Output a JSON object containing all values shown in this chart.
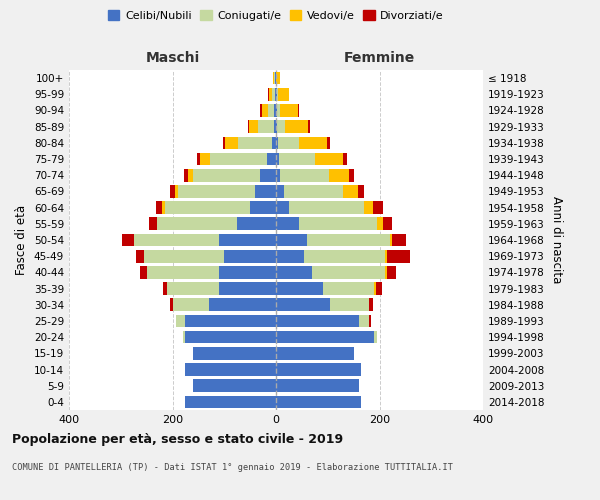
{
  "age_groups": [
    "0-4",
    "5-9",
    "10-14",
    "15-19",
    "20-24",
    "25-29",
    "30-34",
    "35-39",
    "40-44",
    "45-49",
    "50-54",
    "55-59",
    "60-64",
    "65-69",
    "70-74",
    "75-79",
    "80-84",
    "85-89",
    "90-94",
    "95-99",
    "100+"
  ],
  "birth_years": [
    "2014-2018",
    "2009-2013",
    "2004-2008",
    "1999-2003",
    "1994-1998",
    "1989-1993",
    "1984-1988",
    "1979-1983",
    "1974-1978",
    "1969-1973",
    "1964-1968",
    "1959-1963",
    "1954-1958",
    "1949-1953",
    "1944-1948",
    "1939-1943",
    "1934-1938",
    "1929-1933",
    "1924-1928",
    "1919-1923",
    "≤ 1918"
  ],
  "maschi_celibi": [
    175,
    160,
    175,
    160,
    175,
    175,
    130,
    110,
    110,
    100,
    110,
    75,
    50,
    40,
    30,
    18,
    8,
    4,
    4,
    2,
    1
  ],
  "maschi_coniugati": [
    0,
    0,
    0,
    0,
    5,
    18,
    70,
    100,
    140,
    155,
    165,
    155,
    165,
    150,
    130,
    110,
    65,
    30,
    12,
    6,
    2
  ],
  "maschi_vedovi": [
    0,
    0,
    0,
    0,
    0,
    0,
    0,
    0,
    0,
    0,
    0,
    0,
    5,
    5,
    10,
    18,
    25,
    18,
    12,
    6,
    2
  ],
  "maschi_divorziati": [
    0,
    0,
    0,
    0,
    0,
    0,
    5,
    8,
    12,
    15,
    22,
    15,
    12,
    10,
    8,
    6,
    4,
    2,
    2,
    1,
    0
  ],
  "femmine_celibi": [
    165,
    160,
    165,
    150,
    190,
    160,
    105,
    90,
    70,
    55,
    60,
    45,
    25,
    15,
    8,
    5,
    4,
    2,
    1,
    1,
    0
  ],
  "femmine_coniugati": [
    0,
    0,
    0,
    0,
    5,
    20,
    75,
    100,
    140,
    155,
    160,
    150,
    145,
    115,
    95,
    70,
    40,
    15,
    6,
    2,
    0
  ],
  "femmine_vedovi": [
    0,
    0,
    0,
    0,
    0,
    0,
    0,
    4,
    4,
    4,
    4,
    12,
    18,
    28,
    38,
    55,
    55,
    45,
    35,
    22,
    7
  ],
  "femmine_divorziati": [
    0,
    0,
    0,
    0,
    0,
    4,
    8,
    10,
    18,
    45,
    28,
    18,
    18,
    12,
    10,
    8,
    6,
    4,
    2,
    1,
    0
  ],
  "color_celibi": "#4472c4",
  "color_coniugati": "#c5d9a0",
  "color_vedovi": "#ffc000",
  "color_divorziati": "#c00000",
  "title": "Popolazione per età, sesso e stato civile - 2019",
  "subtitle": "COMUNE DI PANTELLERIA (TP) - Dati ISTAT 1° gennaio 2019 - Elaborazione TUTTITALIA.IT",
  "xlabel_maschi": "Maschi",
  "xlabel_femmine": "Femmine",
  "ylabel_left": "Fasce di età",
  "ylabel_right": "Anni di nascita",
  "xlim": 400,
  "bg_color": "#f0f0f0",
  "plot_bg": "#ffffff",
  "grid_color": "#cccccc"
}
